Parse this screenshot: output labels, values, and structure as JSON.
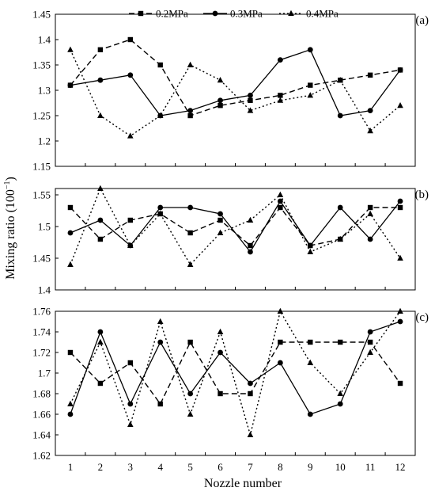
{
  "chart_data": {
    "type": "line",
    "x": [
      1,
      2,
      3,
      4,
      5,
      6,
      7,
      8,
      9,
      10,
      11,
      12
    ],
    "x_ticks": [
      "1",
      "2",
      "3",
      "4",
      "5",
      "6",
      "7",
      "8",
      "9",
      "10",
      "11",
      "12"
    ],
    "xlabel": "Nozzle number",
    "ylabel_main": "Mixing ratio (100",
    "ylabel_sup": "−1",
    "ylabel_close": ")",
    "legend_placement": "top-center",
    "grid": false,
    "series_names": [
      "0.2MPa",
      "0.3MPa",
      "0.4MPa"
    ],
    "panels": [
      {
        "tag": "(a)",
        "ylim": [
          1.15,
          1.45
        ],
        "yticks": [
          "1.15",
          "1.2",
          "1.25",
          "1.3",
          "1.35",
          "1.4",
          "1.45"
        ],
        "series": [
          {
            "name": "0.2MPa",
            "values": [
              1.31,
              1.38,
              1.4,
              1.35,
              1.25,
              1.27,
              1.28,
              1.29,
              1.31,
              1.32,
              1.33,
              1.34
            ]
          },
          {
            "name": "0.3MPa",
            "values": [
              1.31,
              1.32,
              1.33,
              1.25,
              1.26,
              1.28,
              1.29,
              1.36,
              1.38,
              1.25,
              1.26,
              1.34
            ]
          },
          {
            "name": "0.4MPa",
            "values": [
              1.38,
              1.25,
              1.21,
              1.25,
              1.35,
              1.32,
              1.26,
              1.28,
              1.29,
              1.32,
              1.22,
              1.27
            ]
          }
        ]
      },
      {
        "tag": "(b)",
        "ylim": [
          1.4,
          1.56
        ],
        "yticks": [
          "1.4",
          "1.45",
          "1.5",
          "1.55"
        ],
        "series": [
          {
            "name": "0.2MPa",
            "values": [
              1.53,
              1.48,
              1.51,
              1.52,
              1.49,
              1.51,
              1.47,
              1.53,
              1.47,
              1.48,
              1.53,
              1.53
            ]
          },
          {
            "name": "0.3MPa",
            "values": [
              1.49,
              1.51,
              1.47,
              1.53,
              1.53,
              1.52,
              1.46,
              1.54,
              1.47,
              1.53,
              1.48,
              1.54
            ]
          },
          {
            "name": "0.4MPa",
            "values": [
              1.44,
              1.56,
              1.47,
              1.52,
              1.44,
              1.49,
              1.51,
              1.55,
              1.46,
              1.48,
              1.52,
              1.45
            ]
          }
        ]
      },
      {
        "tag": "(c)",
        "ylim": [
          1.62,
          1.76
        ],
        "yticks": [
          "1.62",
          "1.64",
          "1.66",
          "1.68",
          "1.7",
          "1.72",
          "1.74",
          "1.76"
        ],
        "series": [
          {
            "name": "0.2MPa",
            "values": [
              1.72,
              1.69,
              1.71,
              1.67,
              1.73,
              1.68,
              1.68,
              1.73,
              1.73,
              1.73,
              1.73,
              1.69
            ]
          },
          {
            "name": "0.3MPa",
            "values": [
              1.66,
              1.74,
              1.67,
              1.73,
              1.68,
              1.72,
              1.69,
              1.71,
              1.66,
              1.67,
              1.74,
              1.75
            ]
          },
          {
            "name": "0.4MPa",
            "values": [
              1.67,
              1.73,
              1.65,
              1.75,
              1.66,
              1.74,
              1.64,
              1.76,
              1.71,
              1.68,
              1.72,
              1.76
            ]
          }
        ]
      }
    ]
  }
}
